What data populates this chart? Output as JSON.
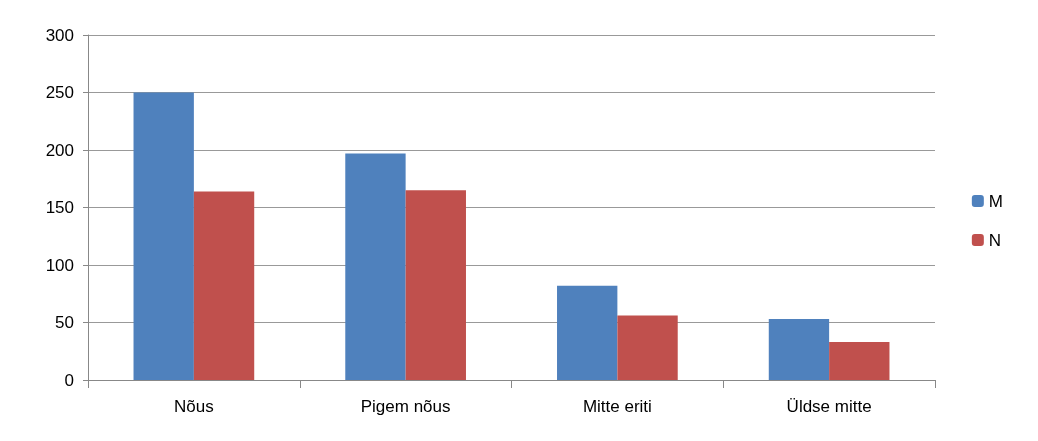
{
  "chart_data": {
    "type": "bar",
    "categories": [
      "Nõus",
      "Pigem nõus",
      "Mitte eriti",
      "Üldse mitte"
    ],
    "series": [
      {
        "name": "M",
        "color": "#4f81bd",
        "values": [
          250,
          197,
          82,
          53
        ]
      },
      {
        "name": "N",
        "color": "#c0504d",
        "values": [
          164,
          165,
          56,
          33
        ]
      }
    ],
    "ylim": [
      0,
      300
    ],
    "yticks": [
      0,
      50,
      100,
      150,
      200,
      250,
      300
    ],
    "grid": "y",
    "legend": "right"
  }
}
